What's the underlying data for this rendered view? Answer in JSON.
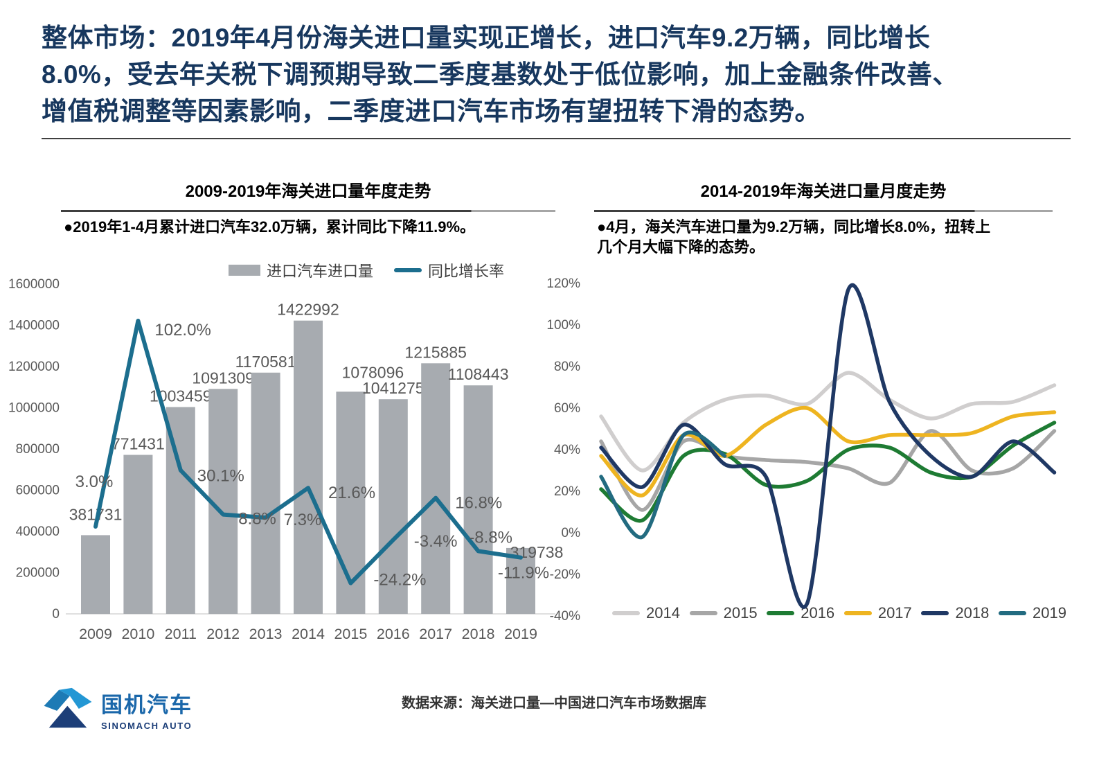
{
  "header": {
    "title_lines": [
      "整体市场：2019年4月份海关进口量实现正增长，进口汽车9.2万辆，同比增长",
      "8.0%，受去年关税下调预期导致二季度基数处于低位影响，加上金融条件改善、",
      "增值税调整等因素影响，二季度进口汽车市场有望扭转下滑的态势。"
    ]
  },
  "colors": {
    "header_navy": "#17375e",
    "bar_gray": "#a7abb0",
    "line_teal": "#1c6e8e",
    "axis_text": "#595959",
    "axis_line": "#d6d6d6"
  },
  "chart_data": [
    {
      "type": "bar+line",
      "title": "2009-2019年海关进口量年度走势",
      "note_lines": [
        "●2019年1-4月累计进口汽车32.0万辆，累计同比下降11.9%。"
      ],
      "categories": [
        "2009",
        "2010",
        "2011",
        "2012",
        "2013",
        "2014",
        "2015",
        "2016",
        "2017",
        "2018",
        "2019"
      ],
      "bar_series": {
        "name": "进口汽车进口量",
        "color": "#a7abb0",
        "values": [
          381731,
          771431,
          1003459,
          1091309,
          1170581,
          1422992,
          1078096,
          1041275,
          1215885,
          1108443,
          319738
        ]
      },
      "line_series": {
        "name": "同比增长率",
        "color": "#1c6e8e",
        "values_pct": [
          3.0,
          102.0,
          30.1,
          8.8,
          7.3,
          21.6,
          -24.2,
          -3.4,
          16.8,
          -8.8,
          -11.9
        ],
        "labels": [
          "3.0%",
          "102.0%",
          "30.1%",
          "8.8%",
          "7.3%",
          "21.6%",
          "-24.2%",
          "-3.4%",
          "16.8%",
          "-8.8%",
          "-11.9%"
        ]
      },
      "ylim": [
        0,
        1600000
      ],
      "y_axis_ticks": [
        "0",
        "200000",
        "400000",
        "600000",
        "800000",
        "1000000",
        "1200000",
        "1400000",
        "1600000"
      ],
      "pct_lim": [
        -40,
        120
      ],
      "legend_position": "top"
    },
    {
      "type": "line",
      "title": "2014-2019年海关进口量月度走势",
      "note_lines": [
        "●4月，海关汽车进口量为9.2万辆，同比增长8.0%，扭转上",
        "几个月大幅下降的态势。"
      ],
      "x_unit": "month",
      "n_points": 12,
      "pct_lim": [
        -40,
        120
      ],
      "pct_axis_ticks": [
        "120%",
        "100%",
        "80%",
        "60%",
        "40%",
        "20%",
        "0%",
        "-20%",
        "-40%"
      ],
      "grid": false,
      "legend_position": "bottom",
      "series": [
        {
          "name": "2014",
          "color": "#d0cece",
          "values": [
            56,
            30,
            53,
            64,
            66,
            62,
            77,
            64,
            55,
            62,
            63,
            71
          ]
        },
        {
          "name": "2015",
          "color": "#a6a6a6",
          "values": [
            44,
            11,
            44,
            37,
            35,
            34,
            31,
            24,
            49,
            30,
            31,
            49
          ]
        },
        {
          "name": "2016",
          "color": "#1e7b33",
          "values": [
            21,
            6,
            37,
            38,
            23,
            25,
            40,
            41,
            29,
            27,
            42,
            53
          ]
        },
        {
          "name": "2017",
          "color": "#eeb420",
          "values": [
            37,
            18,
            47,
            37,
            52,
            60,
            44,
            47,
            47,
            48,
            56,
            58
          ]
        },
        {
          "name": "2018",
          "color": "#1f3864",
          "values": [
            41,
            22,
            52,
            33,
            27,
            -34,
            117,
            63,
            37,
            27,
            44,
            29
          ]
        },
        {
          "name": "2019",
          "color": "#226b80",
          "values": [
            27,
            -2,
            47,
            37
          ]
        }
      ]
    }
  ],
  "footer": {
    "source": "数据来源：海关进口量—中国进口汽车市场数据库",
    "logo_cn": "国机汽车",
    "logo_en": "SINOMACH AUTO"
  }
}
